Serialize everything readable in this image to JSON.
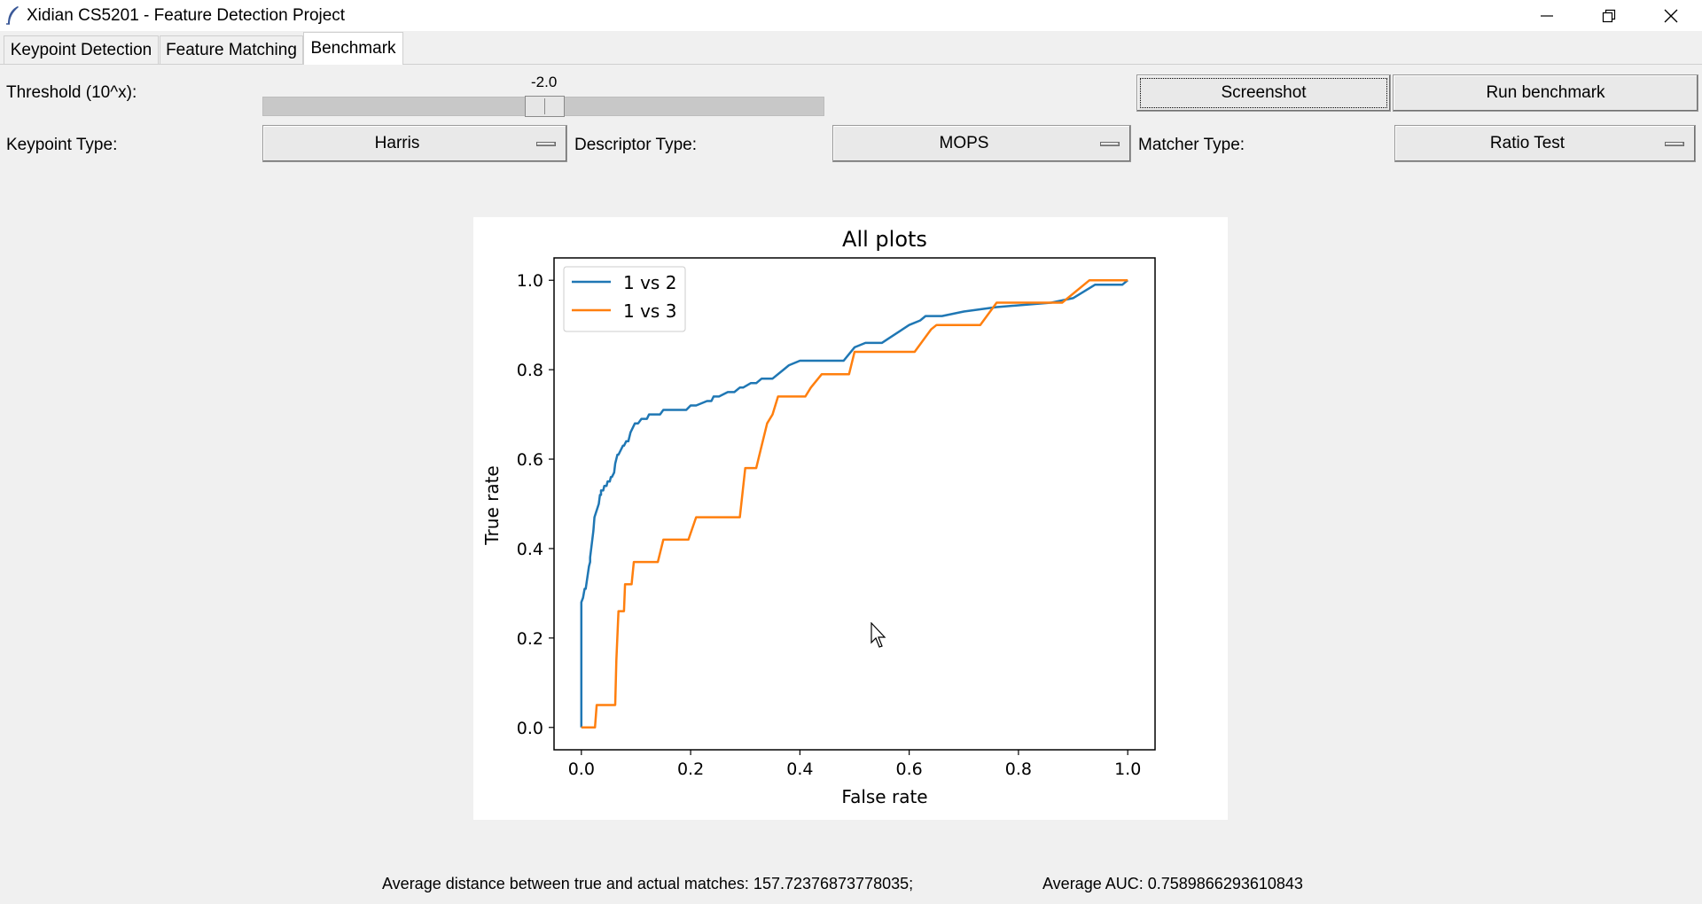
{
  "window": {
    "title": "Xidian CS5201 - Feature Detection Project",
    "icons": [
      "feather-icon",
      "minimize-icon",
      "restore-icon",
      "close-icon"
    ]
  },
  "tabs": [
    {
      "label": "Keypoint Detection"
    },
    {
      "label": "Feature Matching"
    },
    {
      "label": "Benchmark",
      "active": true
    }
  ],
  "controls": {
    "threshold_label": "Threshold (10^x):",
    "threshold_value": "-2.0",
    "threshold_level": 0.57,
    "screenshot_label": "Screenshot",
    "run_benchmark_label": "Run benchmark",
    "keypoint_type_label": "Keypoint Type:",
    "keypoint_type_value": "Harris",
    "descriptor_type_label": "Descriptor Type:",
    "descriptor_type_value": "MOPS",
    "matcher_type_label": "Matcher Type:",
    "matcher_type_value": "Ratio Test"
  },
  "chart_data": {
    "type": "line",
    "title": "All plots",
    "xlabel": "False rate",
    "ylabel": "True rate",
    "xlim": [
      -0.05,
      1.05
    ],
    "ylim": [
      -0.05,
      1.05
    ],
    "x_ticks": [
      "0.0",
      "0.2",
      "0.4",
      "0.6",
      "0.8",
      "1.0"
    ],
    "y_ticks": [
      "0.0",
      "0.2",
      "0.4",
      "0.6",
      "0.8",
      "1.0"
    ],
    "legend_position": "top-left",
    "grid": false,
    "series": [
      {
        "name": "1 vs 2",
        "color": "#1f77b4",
        "x": [
          0.0,
          0.0,
          0.0,
          0.003,
          0.006,
          0.008,
          0.008,
          0.014,
          0.016,
          0.016,
          0.022,
          0.024,
          0.032,
          0.034,
          0.036,
          0.036,
          0.04,
          0.042,
          0.046,
          0.048,
          0.052,
          0.054,
          0.056,
          0.06,
          0.062,
          0.066,
          0.068,
          0.072,
          0.076,
          0.078,
          0.082,
          0.086,
          0.09,
          0.094,
          0.098,
          0.104,
          0.11,
          0.114,
          0.12,
          0.124,
          0.132,
          0.138,
          0.144,
          0.15,
          0.172,
          0.192,
          0.2,
          0.21,
          0.23,
          0.238,
          0.242,
          0.252,
          0.268,
          0.28,
          0.29,
          0.296,
          0.31,
          0.32,
          0.33,
          0.34,
          0.35,
          0.37,
          0.38,
          0.4,
          0.42,
          0.44,
          0.48,
          0.5,
          0.52,
          0.55,
          0.6,
          0.62,
          0.63,
          0.66,
          0.7,
          0.76,
          0.86,
          0.9,
          0.94,
          0.99,
          1.0
        ],
        "y": [
          0.0,
          0.26,
          0.28,
          0.29,
          0.31,
          0.31,
          0.31,
          0.36,
          0.37,
          0.38,
          0.44,
          0.47,
          0.5,
          0.52,
          0.52,
          0.53,
          0.53,
          0.54,
          0.54,
          0.55,
          0.55,
          0.56,
          0.56,
          0.57,
          0.59,
          0.61,
          0.61,
          0.62,
          0.63,
          0.63,
          0.64,
          0.64,
          0.66,
          0.67,
          0.68,
          0.68,
          0.69,
          0.69,
          0.69,
          0.7,
          0.7,
          0.7,
          0.7,
          0.71,
          0.71,
          0.71,
          0.72,
          0.72,
          0.73,
          0.73,
          0.74,
          0.74,
          0.75,
          0.75,
          0.76,
          0.76,
          0.77,
          0.77,
          0.78,
          0.78,
          0.78,
          0.8,
          0.81,
          0.82,
          0.82,
          0.82,
          0.82,
          0.85,
          0.86,
          0.86,
          0.9,
          0.91,
          0.92,
          0.92,
          0.93,
          0.94,
          0.95,
          0.96,
          0.99,
          0.99,
          1.0
        ]
      },
      {
        "name": "1 vs 3",
        "color": "#ff7f0e",
        "x": [
          0.0,
          0.025,
          0.028,
          0.062,
          0.064,
          0.068,
          0.07,
          0.072,
          0.078,
          0.08,
          0.088,
          0.092,
          0.096,
          0.104,
          0.14,
          0.15,
          0.196,
          0.21,
          0.29,
          0.3,
          0.32,
          0.33,
          0.34,
          0.35,
          0.36,
          0.41,
          0.42,
          0.44,
          0.49,
          0.5,
          0.51,
          0.61,
          0.64,
          0.65,
          0.73,
          0.76,
          0.79,
          0.88,
          0.93,
          0.99,
          1.0
        ],
        "y": [
          0.0,
          0.0,
          0.05,
          0.05,
          0.15,
          0.26,
          0.26,
          0.26,
          0.26,
          0.32,
          0.32,
          0.32,
          0.37,
          0.37,
          0.37,
          0.42,
          0.42,
          0.47,
          0.47,
          0.58,
          0.58,
          0.63,
          0.68,
          0.7,
          0.74,
          0.74,
          0.76,
          0.79,
          0.79,
          0.84,
          0.84,
          0.84,
          0.89,
          0.9,
          0.9,
          0.95,
          0.95,
          0.95,
          1.0,
          1.0,
          1.0
        ]
      }
    ]
  },
  "status": {
    "avg_distance": "Average distance between true and actual matches: 157.72376873778035;",
    "avg_auc": "Average AUC: 0.7589866293610843"
  }
}
